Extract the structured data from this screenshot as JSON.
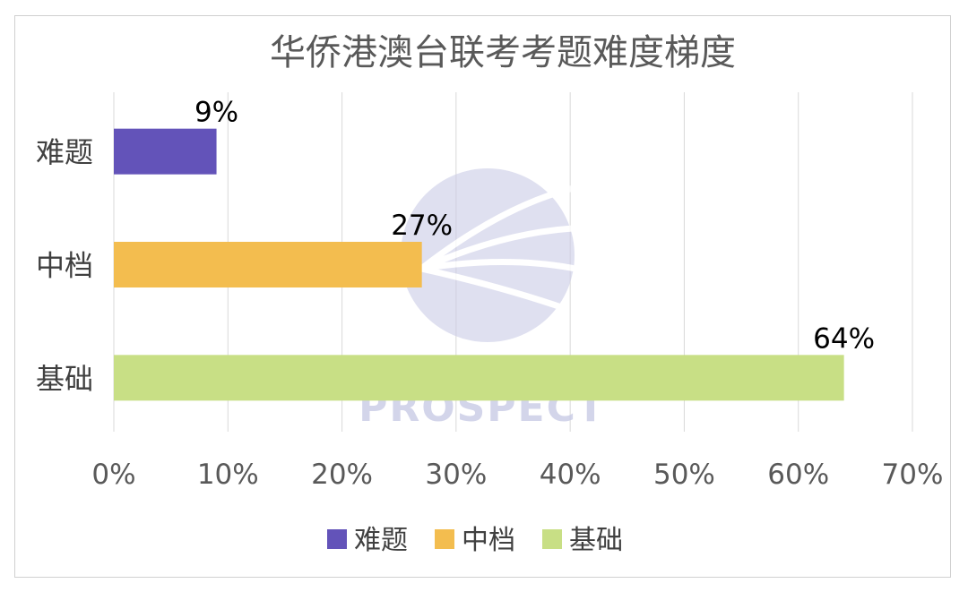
{
  "chart_data": {
    "type": "bar",
    "orientation": "horizontal",
    "title": "华侨港澳台联考考题难度梯度",
    "categories": [
      "难题",
      "中档",
      "基础"
    ],
    "values": [
      9,
      27,
      64
    ],
    "value_labels": [
      "9%",
      "27%",
      "64%"
    ],
    "colors": [
      "#6353b9",
      "#f3bd4f",
      "#c8df85"
    ],
    "xlim": [
      0,
      70
    ],
    "xticks": [
      "0%",
      "10%",
      "20%",
      "30%",
      "40%",
      "50%",
      "60%",
      "70%"
    ],
    "grid": true,
    "legend": {
      "placement": "bottom",
      "entries": [
        "难题",
        "中档",
        "基础"
      ]
    }
  },
  "watermark": {
    "text": "PROSPECT",
    "color": "#c9cbe6"
  }
}
